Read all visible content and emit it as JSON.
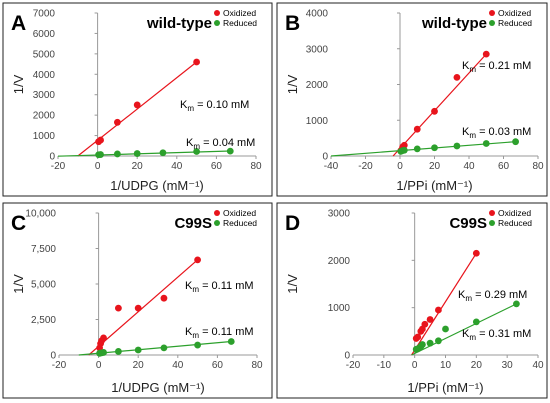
{
  "chart_data": [
    {
      "type": "scatter",
      "panel_letter": "A",
      "title": "wild-type",
      "xlabel": "1/UDPG (mM⁻¹)",
      "ylabel": "1/V",
      "xlim": [
        -20,
        80
      ],
      "ylim": [
        0,
        7000
      ],
      "x_ticks": [
        -20,
        0,
        20,
        40,
        60,
        80
      ],
      "y_ticks": [
        0,
        1000,
        2000,
        3000,
        4000,
        5000,
        6000,
        7000
      ],
      "y_tick_labels": [
        "0",
        "1000",
        "2000",
        "3000",
        "4000",
        "5000",
        "6000",
        "7000"
      ],
      "legend_position": "top-right",
      "series": [
        {
          "name": "Oxidized",
          "color": "#e8141c",
          "x": [
            0.5,
            1.5,
            10,
            20,
            50
          ],
          "y": [
            700,
            780,
            1650,
            2500,
            4600
          ],
          "fit": {
            "x": [
              -10,
              50
            ],
            "y": [
              0,
              4600
            ]
          },
          "km_label": "K<sub>m</sub> = 0.10 mM"
        },
        {
          "name": "Reduced",
          "color": "#2ca02c",
          "x": [
            0.5,
            1.5,
            10,
            20,
            33,
            50,
            67
          ],
          "y": [
            60,
            70,
            100,
            120,
            160,
            220,
            240
          ],
          "fit": {
            "x": [
              -20,
              67
            ],
            "y": [
              -10,
              245
            ]
          },
          "km_label": "K<sub>m</sub> = 0.04 mM"
        }
      ]
    },
    {
      "type": "scatter",
      "panel_letter": "B",
      "title": "wild-type",
      "xlabel": "1/PPi (mM⁻¹)",
      "ylabel": "1/V",
      "xlim": [
        -40,
        80
      ],
      "ylim": [
        0,
        4000
      ],
      "x_ticks": [
        -40,
        -20,
        0,
        20,
        40,
        60,
        80
      ],
      "y_ticks": [
        0,
        1000,
        2000,
        3000,
        4000
      ],
      "y_tick_labels": [
        "0",
        "1000",
        "2000",
        "3000",
        "4000"
      ],
      "legend_position": "top-right",
      "series": [
        {
          "name": "Oxidized",
          "color": "#e8141c",
          "x": [
            0.5,
            1.5,
            2.5,
            10,
            20,
            33,
            50
          ],
          "y": [
            150,
            250,
            300,
            750,
            1250,
            2200,
            2850
          ],
          "fit": {
            "x": [
              -4,
              50
            ],
            "y": [
              0,
              2850
            ]
          },
          "km_label": "K<sub>m</sub> = 0.21 mM"
        },
        {
          "name": "Reduced",
          "color": "#2ca02c",
          "x": [
            0.5,
            1.5,
            2.5,
            10,
            20,
            33,
            50,
            67
          ],
          "y": [
            130,
            150,
            160,
            200,
            230,
            280,
            350,
            400
          ],
          "fit": {
            "x": [
              -40,
              67
            ],
            "y": [
              0,
              400
            ]
          },
          "km_label": "K<sub>m</sub> = 0.03 mM"
        }
      ]
    },
    {
      "type": "scatter",
      "panel_letter": "C",
      "title": "C99S",
      "xlabel": "1/UDPG (mM⁻¹)",
      "ylabel": "1/V",
      "xlim": [
        -20,
        80
      ],
      "ylim": [
        0,
        10000
      ],
      "x_ticks": [
        -20,
        0,
        20,
        40,
        60,
        80
      ],
      "y_ticks": [
        0,
        2500,
        5000,
        7500,
        10000
      ],
      "y_tick_labels": [
        "0",
        "2,500",
        "5,000",
        "7,500",
        "10,000"
      ],
      "legend_position": "top-right",
      "series": [
        {
          "name": "Oxidized",
          "color": "#e8141c",
          "x": [
            0.5,
            1,
            1.5,
            2.5,
            10,
            20,
            33,
            50
          ],
          "y": [
            500,
            800,
            1000,
            1200,
            3300,
            3300,
            4000,
            6700
          ],
          "fit": {
            "x": [
              -5,
              50
            ],
            "y": [
              0,
              6700
            ]
          },
          "km_label": "K<sub>m</sub> = 0.11 mM"
        },
        {
          "name": "Reduced",
          "color": "#2ca02c",
          "x": [
            0.5,
            1.5,
            2.5,
            10,
            20,
            33,
            50,
            67
          ],
          "y": [
            120,
            150,
            180,
            250,
            350,
            500,
            700,
            950
          ],
          "fit": {
            "x": [
              -10,
              67
            ],
            "y": [
              0,
              950
            ]
          },
          "km_label": "K<sub>m</sub> = 0.11 mM"
        }
      ]
    },
    {
      "type": "scatter",
      "panel_letter": "D",
      "title": "C99S",
      "xlabel": "1/PPi (mM⁻¹)",
      "ylabel": "1/V",
      "xlim": [
        -20,
        40
      ],
      "ylim": [
        0,
        3000
      ],
      "x_ticks": [
        -20,
        -10,
        0,
        10,
        20,
        30,
        40
      ],
      "y_ticks": [
        0,
        1000,
        2000,
        3000
      ],
      "y_tick_labels": [
        "0",
        "1000",
        "2000",
        "3000"
      ],
      "legend_position": "top-right",
      "series": [
        {
          "name": "Oxidized",
          "color": "#e8141c",
          "x": [
            0.5,
            1,
            2,
            2.5,
            3.3,
            5,
            7.7,
            20
          ],
          "y": [
            350,
            380,
            500,
            550,
            650,
            750,
            950,
            2150
          ],
          "fit": {
            "x": [
              -1,
              20
            ],
            "y": [
              0,
              2150
            ]
          },
          "km_label": "K<sub>m</sub> = 0.29 mM"
        },
        {
          "name": "Reduced",
          "color": "#2ca02c",
          "x": [
            0.5,
            1,
            1.5,
            2,
            2.5,
            5,
            7.7,
            10,
            20,
            33
          ],
          "y": [
            120,
            130,
            150,
            180,
            220,
            250,
            300,
            550,
            700,
            1080
          ],
          "fit": {
            "x": [
              -1,
              33
            ],
            "y": [
              0,
              1080
            ]
          },
          "km_label": "K<sub>m</sub> = 0.31 mM"
        }
      ]
    }
  ]
}
